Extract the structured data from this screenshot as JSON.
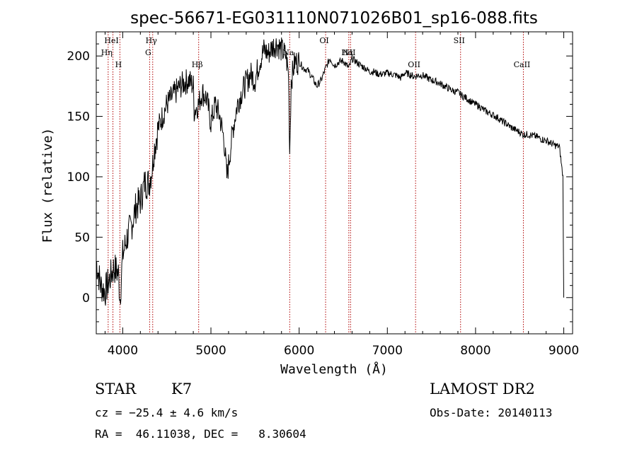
{
  "chart_data": {
    "type": "line",
    "title": "spec-56671-EG031110N071026B01_sp16-088.fits",
    "xlabel": "Wavelength (Å)",
    "ylabel": "Flux (relative)",
    "xlim": [
      3700,
      9100
    ],
    "ylim": [
      -30,
      220
    ],
    "x_ticks": [
      4000,
      5000,
      6000,
      7000,
      8000,
      9000
    ],
    "y_ticks": [
      0,
      50,
      100,
      150,
      200
    ],
    "grid": false,
    "series": [
      {
        "x": [
          3700,
          3750,
          3800,
          3850,
          3900,
          3950,
          3970,
          4000,
          4050,
          4100,
          4150,
          4200,
          4250,
          4300,
          4340,
          4350,
          4400,
          4450,
          4500,
          4550,
          4600,
          4650,
          4700,
          4750,
          4800,
          4810,
          4861,
          4900,
          4950,
          5000,
          5050,
          5100,
          5150,
          5180,
          5200,
          5250,
          5300,
          5350,
          5400,
          5450,
          5500,
          5550,
          5600,
          5650,
          5700,
          5750,
          5800,
          5850,
          5880,
          5893,
          5910,
          5950,
          6000,
          6050,
          6100,
          6150,
          6200,
          6250,
          6300,
          6350,
          6400,
          6450,
          6500,
          6563,
          6600,
          6650,
          6700,
          6750,
          6800,
          6850,
          6900,
          6950,
          7000,
          7050,
          7100,
          7150,
          7200,
          7250,
          7300,
          7350,
          7400,
          7450,
          7500,
          7550,
          7600,
          7650,
          7700,
          7750,
          7800,
          7850,
          7900,
          7950,
          8000,
          8050,
          8100,
          8150,
          8200,
          8250,
          8300,
          8350,
          8400,
          8450,
          8500,
          8542,
          8600,
          8650,
          8700,
          8750,
          8800,
          8850,
          8900,
          8950,
          8990,
          9000
        ],
        "y": [
          30,
          10,
          5,
          15,
          25,
          20,
          0,
          35,
          50,
          60,
          75,
          80,
          95,
          95,
          110,
          120,
          140,
          150,
          160,
          165,
          170,
          175,
          178,
          180,
          175,
          155,
          160,
          170,
          165,
          145,
          160,
          150,
          130,
          100,
          110,
          140,
          160,
          170,
          178,
          185,
          180,
          195,
          205,
          202,
          208,
          210,
          205,
          200,
          185,
          120,
          180,
          195,
          195,
          190,
          188,
          182,
          175,
          180,
          190,
          198,
          192,
          195,
          196,
          190,
          198,
          195,
          192,
          190,
          187,
          187,
          185,
          185,
          186,
          185,
          184,
          182,
          186,
          185,
          183,
          184,
          184,
          182,
          180,
          179,
          177,
          175,
          173,
          171,
          170,
          167,
          165,
          162,
          160,
          158,
          155,
          153,
          151,
          149,
          146,
          144,
          141,
          139,
          137,
          135,
          135,
          134,
          133,
          131,
          130,
          128,
          126,
          125,
          100,
          0
        ]
      }
    ],
    "lines": [
      {
        "label": "HeI",
        "x": 3889,
        "row": 0
      },
      {
        "label": "Hη",
        "x": 3835,
        "row": 1
      },
      {
        "label": "H",
        "x": 3968,
        "row": 2
      },
      {
        "label": "Hγ",
        "x": 4340,
        "row": 0
      },
      {
        "label": "G",
        "x": 4305,
        "row": 1
      },
      {
        "label": "Hβ",
        "x": 4861,
        "row": 2
      },
      {
        "label": "Na",
        "x": 5893,
        "row": 1
      },
      {
        "label": "OI",
        "x": 6300,
        "row": 0
      },
      {
        "label": "NII",
        "x": 6583,
        "row": 1
      },
      {
        "label": "Hα",
        "x": 6563,
        "row": 1
      },
      {
        "label": "OII",
        "x": 7320,
        "row": 2
      },
      {
        "label": "SII",
        "x": 7830,
        "row": 0
      },
      {
        "label": "CaII",
        "x": 8542,
        "row": 2
      }
    ]
  },
  "info": {
    "class": "STAR",
    "subclass": "K7",
    "survey": "LAMOST DR2",
    "cz": "cz = −25.4 ± 4.6 km/s",
    "obs_date": "Obs-Date: 20140113",
    "radec": "RA =  46.11038, DEC =   8.30604"
  },
  "colors": {
    "line": "#000000",
    "marker": "#b00000"
  }
}
